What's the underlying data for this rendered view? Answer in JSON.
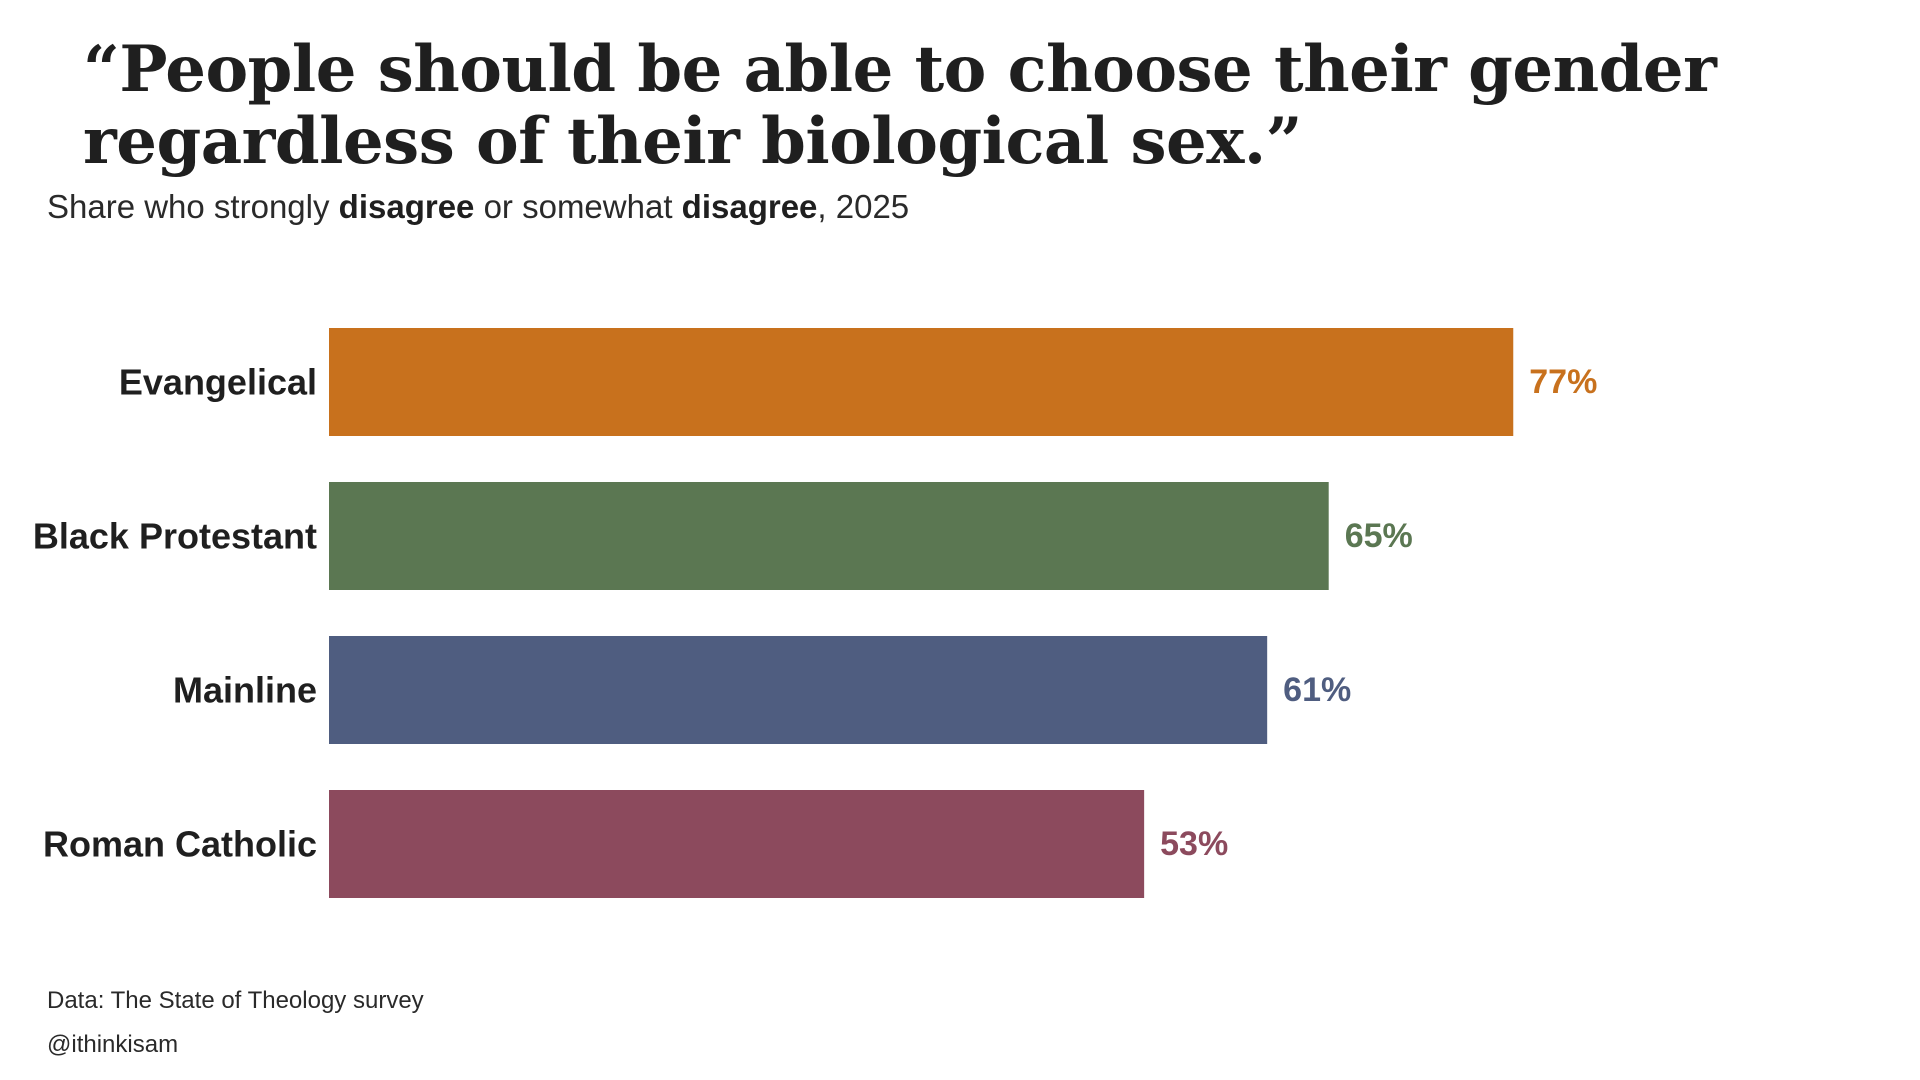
{
  "chart_data": {
    "type": "bar",
    "orientation": "horizontal",
    "title": "“People should be able to choose their gender regardless of their biological sex.”",
    "subtitle_parts": [
      "Share who strongly ",
      "disagree",
      " or somewhat ",
      "disagree",
      ", 2025"
    ],
    "categories": [
      "Evangelical",
      "Black Protestant",
      "Mainline",
      "Roman Catholic"
    ],
    "values": [
      77,
      65,
      61,
      53
    ],
    "value_labels": [
      "77%",
      "65%",
      "61%",
      "53%"
    ],
    "colors": [
      "#c8711d",
      "#5b7752",
      "#4f5d80",
      "#8c4a5d"
    ],
    "xlim": [
      0,
      100
    ],
    "grid": false,
    "legend": "none"
  },
  "footer": {
    "source": "Data: The State of Theology survey",
    "handle": "@ithinkisam"
  }
}
